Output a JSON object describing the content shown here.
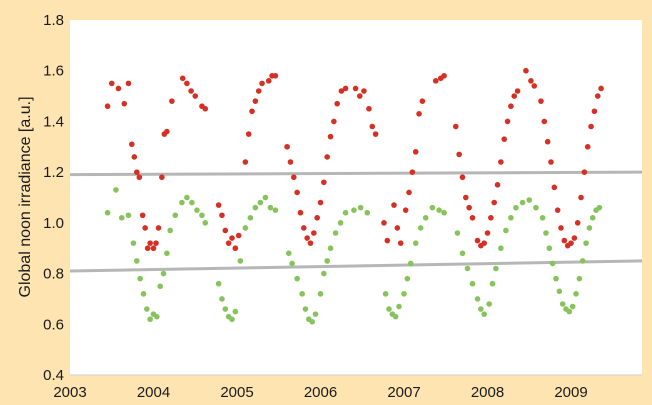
{
  "chart_data": {
    "type": "scatter",
    "title": "",
    "xlabel": "",
    "ylabel": "Global noon irradiance [a.u.]",
    "xlim": [
      2003,
      2009.85
    ],
    "ylim": [
      0.4,
      1.8
    ],
    "x_ticks": [
      "2003",
      "2004",
      "2005",
      "2006",
      "2007",
      "2008",
      "2009"
    ],
    "y_ticks": [
      "0.4",
      "0.6",
      "0.8",
      "1.0",
      "1.2",
      "1.4",
      "1.6",
      "1.8"
    ],
    "grid": false,
    "legend": "none",
    "colors": {
      "red_series": "#d62f23",
      "green_series": "#86c35a",
      "reference_line": "#a9a9a9",
      "plot_background": "#ffffff",
      "page_background": "#fde4b0"
    },
    "reference_lines": [
      {
        "x": [
          2003,
          2009.85
        ],
        "y": [
          1.19,
          1.2
        ]
      },
      {
        "x": [
          2003,
          2009.85
        ],
        "y": [
          0.81,
          0.85
        ]
      }
    ],
    "series": [
      {
        "color": "#d62f23",
        "points": [
          [
            2003.45,
            1.46
          ],
          [
            2003.5,
            1.55
          ],
          [
            2003.58,
            1.53
          ],
          [
            2003.65,
            1.47
          ],
          [
            2003.7,
            1.55
          ],
          [
            2003.74,
            1.31
          ],
          [
            2003.77,
            1.26
          ],
          [
            2003.8,
            1.2
          ],
          [
            2003.83,
            1.18
          ],
          [
            2003.87,
            1.03
          ],
          [
            2003.9,
            0.98
          ],
          [
            2003.93,
            0.9
          ],
          [
            2003.96,
            0.92
          ],
          [
            2004.0,
            0.9
          ],
          [
            2004.03,
            0.92
          ],
          [
            2004.06,
            0.98
          ],
          [
            2004.1,
            1.18
          ],
          [
            2004.13,
            1.35
          ],
          [
            2004.16,
            1.36
          ],
          [
            2004.22,
            1.48
          ],
          [
            2004.35,
            1.57
          ],
          [
            2004.4,
            1.55
          ],
          [
            2004.45,
            1.52
          ],
          [
            2004.5,
            1.5
          ],
          [
            2004.58,
            1.46
          ],
          [
            2004.62,
            1.45
          ],
          [
            2004.78,
            1.07
          ],
          [
            2004.82,
            1.03
          ],
          [
            2004.86,
            0.97
          ],
          [
            2004.9,
            0.92
          ],
          [
            2004.94,
            0.94
          ],
          [
            2004.98,
            0.9
          ],
          [
            2005.02,
            0.95
          ],
          [
            2005.1,
            1.24
          ],
          [
            2005.14,
            1.35
          ],
          [
            2005.18,
            1.44
          ],
          [
            2005.22,
            1.48
          ],
          [
            2005.26,
            1.52
          ],
          [
            2005.3,
            1.55
          ],
          [
            2005.38,
            1.56
          ],
          [
            2005.42,
            1.58
          ],
          [
            2005.46,
            1.58
          ],
          [
            2005.6,
            1.3
          ],
          [
            2005.64,
            1.24
          ],
          [
            2005.68,
            1.18
          ],
          [
            2005.72,
            1.12
          ],
          [
            2005.76,
            1.04
          ],
          [
            2005.8,
            0.98
          ],
          [
            2005.84,
            0.94
          ],
          [
            2005.88,
            0.92
          ],
          [
            2005.92,
            0.96
          ],
          [
            2005.96,
            1.02
          ],
          [
            2006.0,
            1.08
          ],
          [
            2006.04,
            1.16
          ],
          [
            2006.08,
            1.26
          ],
          [
            2006.12,
            1.34
          ],
          [
            2006.16,
            1.4
          ],
          [
            2006.2,
            1.47
          ],
          [
            2006.25,
            1.52
          ],
          [
            2006.3,
            1.53
          ],
          [
            2006.42,
            1.53
          ],
          [
            2006.47,
            1.5
          ],
          [
            2006.52,
            1.52
          ],
          [
            2006.58,
            1.45
          ],
          [
            2006.62,
            1.38
          ],
          [
            2006.66,
            1.35
          ],
          [
            2006.76,
            1.0
          ],
          [
            2006.8,
            0.93
          ],
          [
            2006.88,
            1.07
          ],
          [
            2006.92,
            0.98
          ],
          [
            2006.96,
            0.92
          ],
          [
            2007.02,
            1.05
          ],
          [
            2007.06,
            1.12
          ],
          [
            2007.1,
            1.2
          ],
          [
            2007.14,
            1.28
          ],
          [
            2007.18,
            1.43
          ],
          [
            2007.22,
            1.48
          ],
          [
            2007.38,
            1.56
          ],
          [
            2007.44,
            1.57
          ],
          [
            2007.48,
            1.58
          ],
          [
            2007.62,
            1.38
          ],
          [
            2007.66,
            1.27
          ],
          [
            2007.7,
            1.18
          ],
          [
            2007.74,
            1.1
          ],
          [
            2007.78,
            1.06
          ],
          [
            2007.82,
            1.02
          ],
          [
            2007.88,
            0.93
          ],
          [
            2007.92,
            0.91
          ],
          [
            2007.96,
            0.92
          ],
          [
            2008.0,
            0.96
          ],
          [
            2008.04,
            1.02
          ],
          [
            2008.08,
            1.08
          ],
          [
            2008.12,
            1.15
          ],
          [
            2008.16,
            1.24
          ],
          [
            2008.2,
            1.33
          ],
          [
            2008.24,
            1.4
          ],
          [
            2008.28,
            1.46
          ],
          [
            2008.32,
            1.5
          ],
          [
            2008.36,
            1.52
          ],
          [
            2008.46,
            1.6
          ],
          [
            2008.52,
            1.56
          ],
          [
            2008.56,
            1.54
          ],
          [
            2008.64,
            1.48
          ],
          [
            2008.68,
            1.4
          ],
          [
            2008.72,
            1.32
          ],
          [
            2008.76,
            1.24
          ],
          [
            2008.8,
            1.14
          ],
          [
            2008.84,
            1.05
          ],
          [
            2008.88,
            0.98
          ],
          [
            2008.92,
            0.93
          ],
          [
            2008.96,
            0.91
          ],
          [
            2009.0,
            0.92
          ],
          [
            2009.04,
            0.94
          ],
          [
            2009.08,
            1.0
          ],
          [
            2009.12,
            1.1
          ],
          [
            2009.16,
            1.2
          ],
          [
            2009.2,
            1.3
          ],
          [
            2009.24,
            1.38
          ],
          [
            2009.28,
            1.44
          ],
          [
            2009.32,
            1.5
          ],
          [
            2009.36,
            1.53
          ]
        ]
      },
      {
        "color": "#86c35a",
        "points": [
          [
            2003.45,
            1.04
          ],
          [
            2003.55,
            1.13
          ],
          [
            2003.62,
            1.02
          ],
          [
            2003.7,
            1.03
          ],
          [
            2003.76,
            0.92
          ],
          [
            2003.8,
            0.85
          ],
          [
            2003.84,
            0.78
          ],
          [
            2003.88,
            0.72
          ],
          [
            2003.92,
            0.66
          ],
          [
            2003.96,
            0.62
          ],
          [
            2004.0,
            0.64
          ],
          [
            2004.04,
            0.63
          ],
          [
            2004.08,
            0.75
          ],
          [
            2004.12,
            0.8
          ],
          [
            2004.16,
            0.88
          ],
          [
            2004.2,
            0.97
          ],
          [
            2004.26,
            1.03
          ],
          [
            2004.34,
            1.08
          ],
          [
            2004.4,
            1.1
          ],
          [
            2004.46,
            1.08
          ],
          [
            2004.52,
            1.05
          ],
          [
            2004.58,
            1.03
          ],
          [
            2004.62,
            1.0
          ],
          [
            2004.78,
            0.76
          ],
          [
            2004.82,
            0.7
          ],
          [
            2004.86,
            0.66
          ],
          [
            2004.9,
            0.63
          ],
          [
            2004.94,
            0.62
          ],
          [
            2004.98,
            0.65
          ],
          [
            2005.04,
            0.85
          ],
          [
            2005.1,
            0.98
          ],
          [
            2005.16,
            1.02
          ],
          [
            2005.22,
            1.06
          ],
          [
            2005.28,
            1.08
          ],
          [
            2005.34,
            1.1
          ],
          [
            2005.4,
            1.06
          ],
          [
            2005.46,
            1.05
          ],
          [
            2005.62,
            0.88
          ],
          [
            2005.66,
            0.84
          ],
          [
            2005.72,
            0.78
          ],
          [
            2005.78,
            0.72
          ],
          [
            2005.82,
            0.66
          ],
          [
            2005.86,
            0.62
          ],
          [
            2005.9,
            0.61
          ],
          [
            2005.94,
            0.64
          ],
          [
            2006.0,
            0.72
          ],
          [
            2006.04,
            0.8
          ],
          [
            2006.08,
            0.85
          ],
          [
            2006.12,
            0.9
          ],
          [
            2006.18,
            0.96
          ],
          [
            2006.24,
            1.0
          ],
          [
            2006.3,
            1.04
          ],
          [
            2006.4,
            1.05
          ],
          [
            2006.48,
            1.06
          ],
          [
            2006.56,
            1.04
          ],
          [
            2006.78,
            0.72
          ],
          [
            2006.82,
            0.66
          ],
          [
            2006.86,
            0.64
          ],
          [
            2006.9,
            0.63
          ],
          [
            2006.94,
            0.67
          ],
          [
            2007.0,
            0.72
          ],
          [
            2007.04,
            0.78
          ],
          [
            2007.08,
            0.84
          ],
          [
            2007.14,
            0.92
          ],
          [
            2007.2,
            0.98
          ],
          [
            2007.26,
            1.02
          ],
          [
            2007.34,
            1.06
          ],
          [
            2007.42,
            1.05
          ],
          [
            2007.48,
            1.04
          ],
          [
            2007.64,
            0.96
          ],
          [
            2007.7,
            0.88
          ],
          [
            2007.76,
            0.82
          ],
          [
            2007.82,
            0.76
          ],
          [
            2007.88,
            0.7
          ],
          [
            2007.92,
            0.66
          ],
          [
            2007.96,
            0.64
          ],
          [
            2008.02,
            0.68
          ],
          [
            2008.06,
            0.76
          ],
          [
            2008.1,
            0.82
          ],
          [
            2008.16,
            0.9
          ],
          [
            2008.22,
            0.97
          ],
          [
            2008.28,
            1.02
          ],
          [
            2008.34,
            1.06
          ],
          [
            2008.42,
            1.08
          ],
          [
            2008.5,
            1.09
          ],
          [
            2008.58,
            1.06
          ],
          [
            2008.66,
            1.02
          ],
          [
            2008.7,
            0.96
          ],
          [
            2008.74,
            0.9
          ],
          [
            2008.78,
            0.84
          ],
          [
            2008.82,
            0.78
          ],
          [
            2008.86,
            0.73
          ],
          [
            2008.9,
            0.68
          ],
          [
            2008.94,
            0.66
          ],
          [
            2008.98,
            0.65
          ],
          [
            2009.02,
            0.67
          ],
          [
            2009.06,
            0.72
          ],
          [
            2009.1,
            0.78
          ],
          [
            2009.14,
            0.85
          ],
          [
            2009.18,
            0.92
          ],
          [
            2009.22,
            0.98
          ],
          [
            2009.26,
            1.02
          ],
          [
            2009.3,
            1.05
          ],
          [
            2009.34,
            1.06
          ]
        ]
      }
    ]
  }
}
